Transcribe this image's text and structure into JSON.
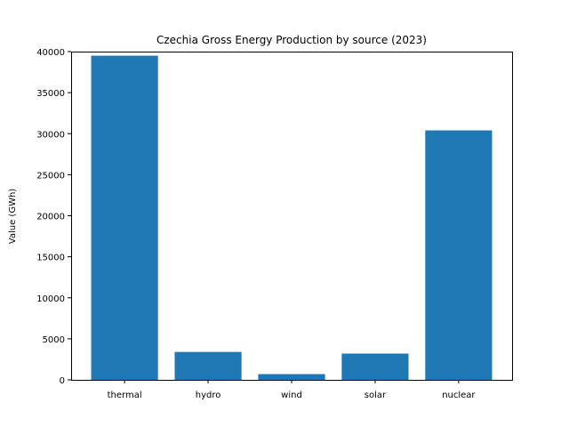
{
  "chart_data": {
    "type": "bar",
    "title": "Czechia Gross Energy Production by source (2023)",
    "xlabel": "",
    "ylabel": "Value (GWh)",
    "categories": [
      "thermal",
      "hydro",
      "wind",
      "solar",
      "nuclear"
    ],
    "values": [
      39500,
      3400,
      700,
      3200,
      30400
    ],
    "ylim": [
      0,
      40000
    ],
    "yticks": [
      0,
      5000,
      10000,
      15000,
      20000,
      25000,
      30000,
      35000,
      40000
    ],
    "bar_color": "#1f77b4",
    "grid": false,
    "legend": "none"
  }
}
